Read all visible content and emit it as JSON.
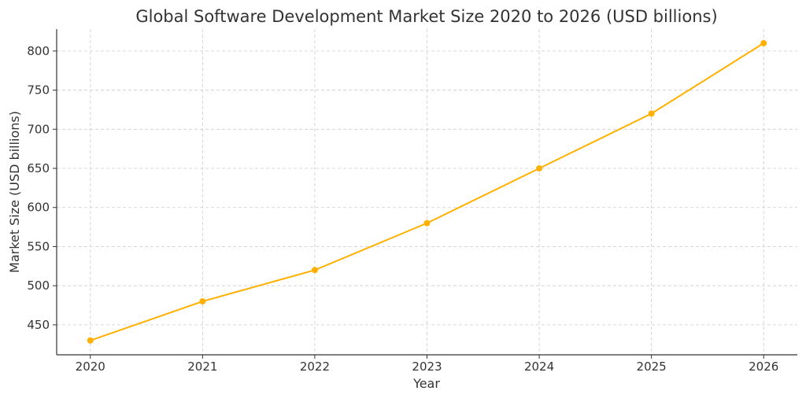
{
  "chart_data": {
    "type": "line",
    "title": "Global Software Development Market Size 2020 to 2026 (USD billions)",
    "xlabel": "Year",
    "ylabel": "Market Size (USD billions)",
    "x": [
      2020,
      2021,
      2022,
      2023,
      2024,
      2025,
      2026
    ],
    "series": [
      {
        "name": "Market Size",
        "values": [
          430,
          480,
          520,
          580,
          650,
          720,
          810
        ],
        "color": "#FFB000"
      }
    ],
    "xlim": [
      2019.7,
      2026.3
    ],
    "ylim": [
      411.7,
      828
    ],
    "yticks": [
      450,
      500,
      550,
      600,
      650,
      700,
      750,
      800
    ],
    "xticks": [
      2020,
      2021,
      2022,
      2023,
      2024,
      2025,
      2026
    ],
    "grid": true
  }
}
